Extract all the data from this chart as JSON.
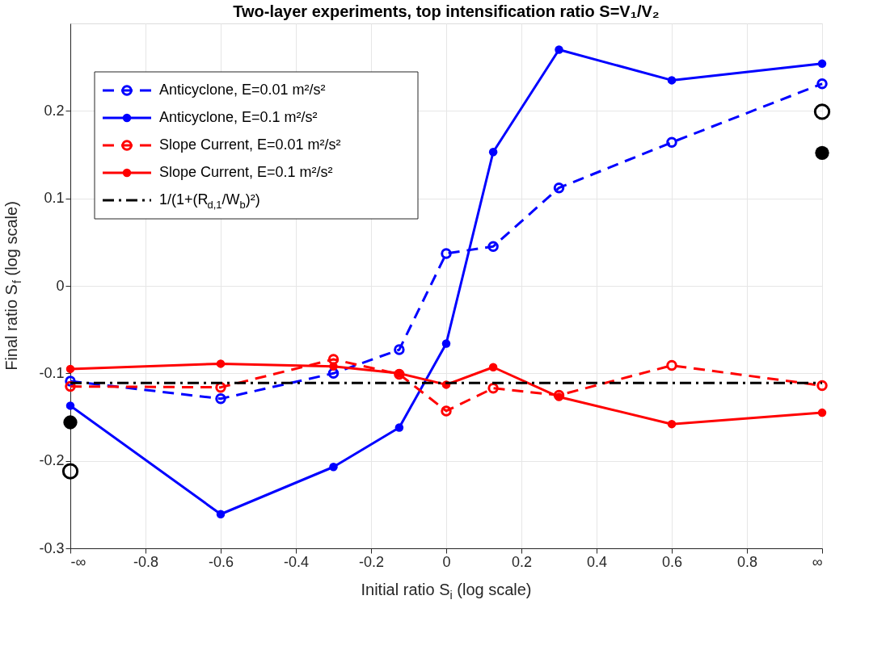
{
  "chart_data": {
    "type": "line",
    "title": "Two-layer experiments, top intensification ratio S=V₁/V₂",
    "xlabel": "Initial ratio S$_{i}$ (log scale)",
    "ylabel": "Final ratio S$_{f}$ (log scale)",
    "xlim": [
      -1,
      1
    ],
    "xticks": [
      {
        "value": -1,
        "label": "-∞"
      },
      -0.8,
      -0.6,
      -0.4,
      -0.2,
      0,
      0.2,
      0.4,
      0.6,
      0.8,
      {
        "value": 1,
        "label": "∞"
      }
    ],
    "ylim": [
      -0.3,
      0.3
    ],
    "yticks": [
      -0.3,
      -0.2,
      -0.1,
      0,
      0.1,
      0.2
    ],
    "grid": true,
    "legend": "top left",
    "series": [
      {
        "name": "Anticyclone, E=0.01 m²/s²",
        "color": "#0000ff",
        "line_style": "dashed",
        "marker": "circle",
        "x": [
          -1,
          -0.6,
          -0.3,
          -0.125,
          0,
          0.125,
          0.3,
          0.6,
          1
        ],
        "values": [
          -0.109,
          -0.129,
          -0.1,
          -0.073,
          0.037,
          0.045,
          0.112,
          0.164,
          0.231
        ]
      },
      {
        "name": "Anticyclone, E=0.1 m²/s²",
        "color": "#0000ff",
        "line_style": "solid",
        "marker": "circle",
        "x": [
          -1,
          -0.6,
          -0.3,
          -0.125,
          0,
          0.125,
          0.3,
          0.6,
          1
        ],
        "values": [
          -0.137,
          -0.261,
          -0.207,
          -0.162,
          -0.066,
          0.153,
          0.27,
          0.235,
          0.254
        ]
      },
      {
        "name": "Slope Current, E=0.01 m²/s²",
        "color": "#ff0000",
        "line_style": "dashed",
        "marker": "circle",
        "x": [
          -1,
          -0.6,
          -0.3,
          -0.125,
          0,
          0.125,
          0.3,
          0.6,
          1
        ],
        "values": [
          -0.115,
          -0.116,
          -0.084,
          -0.101,
          -0.143,
          -0.117,
          -0.125,
          -0.091,
          -0.114
        ]
      },
      {
        "name": "Slope Current, E=0.1 m²/s²",
        "color": "#ff0000",
        "line_style": "solid",
        "marker": "circle",
        "x": [
          -1,
          -0.6,
          -0.3,
          -0.125,
          0,
          0.125,
          0.3,
          0.6,
          1
        ],
        "values": [
          -0.095,
          -0.089,
          -0.092,
          -0.1,
          -0.113,
          -0.093,
          -0.127,
          -0.158,
          -0.145
        ]
      },
      {
        "name": "1/(1+(R$_{d,1}$/W$_{b}$)²)",
        "color": "#000000",
        "line_style": "dashdot",
        "marker": "none",
        "x": [
          -1,
          1
        ],
        "values": [
          -0.111,
          -0.111
        ]
      },
      {
        "type": "scatter",
        "color": "#000000",
        "marker": "circle",
        "line_style": "dashed",
        "x": [
          -1,
          1
        ],
        "values": [
          -0.212,
          0.199
        ]
      },
      {
        "type": "scatter",
        "color": "#000000",
        "marker": "circle",
        "line_style": "solid",
        "x": [
          -1,
          1
        ],
        "values": [
          -0.156,
          0.152
        ]
      }
    ]
  }
}
